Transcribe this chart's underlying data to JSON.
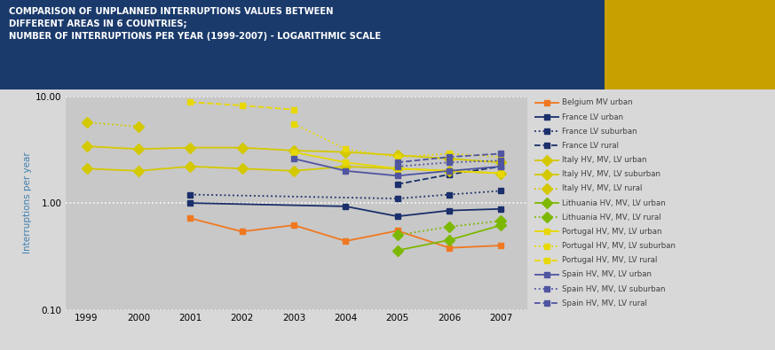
{
  "title_line1": "COMPARISON OF UNPLANNED INTERRUPTIONS VALUES BETWEEN",
  "title_line2": "DIFFERENT AREAS IN 6 COUNTRIES;",
  "title_line3": "NUMBER OF INTERRUPTIONS PER YEAR (1999-2007) - LOGARITHMIC SCALE",
  "ylabel": "Interruptions per year",
  "years": [
    1999,
    2000,
    2001,
    2002,
    2003,
    2004,
    2005,
    2006,
    2007
  ],
  "series": [
    {
      "label": "Belgium MV urban",
      "color": "#f07820",
      "linestyle": "-",
      "marker": "s",
      "markersize": 4,
      "linewidth": 1.3,
      "values": [
        null,
        null,
        0.72,
        0.54,
        0.62,
        0.44,
        0.55,
        0.38,
        0.4
      ]
    },
    {
      "label": "France LV urban",
      "color": "#1a2f6b",
      "linestyle": "-",
      "marker": "s",
      "markersize": 4,
      "linewidth": 1.3,
      "values": [
        null,
        null,
        1.0,
        null,
        null,
        0.93,
        0.75,
        0.85,
        0.88
      ]
    },
    {
      "label": "France LV suburban",
      "color": "#1a2f6b",
      "linestyle": ":",
      "marker": "s",
      "markersize": 4,
      "linewidth": 1.3,
      "values": [
        null,
        null,
        1.2,
        null,
        null,
        null,
        1.1,
        1.2,
        1.3
      ]
    },
    {
      "label": "France LV rural",
      "color": "#1a2f6b",
      "linestyle": "--",
      "marker": "s",
      "markersize": 4,
      "linewidth": 1.3,
      "values": [
        null,
        null,
        null,
        null,
        null,
        null,
        1.5,
        1.85,
        2.2
      ]
    },
    {
      "label": "Italy HV, MV, LV urban",
      "color": "#d4c800",
      "linestyle": "-",
      "marker": "D",
      "markersize": 6,
      "linewidth": 1.3,
      "values": [
        2.1,
        2.0,
        2.2,
        2.1,
        2.0,
        2.2,
        2.1,
        2.0,
        1.9
      ]
    },
    {
      "label": "Italy HV, MV, LV suburban",
      "color": "#d4c800",
      "linestyle": "-",
      "marker": "D",
      "markersize": 6,
      "linewidth": 1.3,
      "values": [
        3.4,
        3.2,
        3.3,
        3.3,
        3.1,
        3.0,
        2.8,
        2.6,
        2.4
      ]
    },
    {
      "label": "Italy HV, MV, LV rural",
      "color": "#d4c800",
      "linestyle": ":",
      "marker": "D",
      "markersize": 6,
      "linewidth": 1.3,
      "values": [
        5.7,
        5.2,
        null,
        null,
        null,
        null,
        null,
        null,
        null
      ]
    },
    {
      "label": "Lithuania HV, MV, LV urban",
      "color": "#7db800",
      "linestyle": "-",
      "marker": "D",
      "markersize": 6,
      "linewidth": 1.3,
      "values": [
        null,
        null,
        null,
        null,
        null,
        null,
        0.36,
        0.45,
        0.62
      ]
    },
    {
      "label": "Lithuania HV, MV, LV rural",
      "color": "#7db800",
      "linestyle": ":",
      "marker": "D",
      "markersize": 6,
      "linewidth": 1.3,
      "values": [
        null,
        null,
        null,
        null,
        null,
        null,
        0.5,
        0.6,
        0.68
      ]
    },
    {
      "label": "Portugal HV, MV, LV urban",
      "color": "#e8d800",
      "linestyle": "-",
      "marker": "s",
      "markersize": 4,
      "linewidth": 1.3,
      "values": [
        null,
        null,
        null,
        null,
        3.0,
        2.4,
        2.1,
        2.0,
        1.9
      ]
    },
    {
      "label": "Portugal HV, MV, LV suburban",
      "color": "#e8d800",
      "linestyle": ":",
      "marker": "s",
      "markersize": 4,
      "linewidth": 1.3,
      "values": [
        null,
        null,
        null,
        null,
        5.5,
        3.2,
        2.7,
        2.9,
        2.7
      ]
    },
    {
      "label": "Portugal HV, MV, LV rural",
      "color": "#e8d800",
      "linestyle": "--",
      "marker": "s",
      "markersize": 4,
      "linewidth": 1.3,
      "values": [
        null,
        null,
        8.8,
        8.2,
        7.5,
        null,
        null,
        null,
        null
      ]
    },
    {
      "label": "Spain HV, MV, LV urban",
      "color": "#5055a0",
      "linestyle": "-",
      "marker": "s",
      "markersize": 4,
      "linewidth": 1.3,
      "values": [
        null,
        null,
        null,
        null,
        2.6,
        2.0,
        1.8,
        2.0,
        2.2
      ]
    },
    {
      "label": "Spain HV, MV, LV suburban",
      "color": "#5055a0",
      "linestyle": ":",
      "marker": "s",
      "markersize": 4,
      "linewidth": 1.3,
      "values": [
        null,
        null,
        null,
        null,
        null,
        null,
        2.2,
        2.4,
        2.5
      ]
    },
    {
      "label": "Spain HV, MV, LV rural",
      "color": "#5055a0",
      "linestyle": "--",
      "marker": "s",
      "markersize": 4,
      "linewidth": 1.3,
      "values": [
        null,
        null,
        null,
        null,
        null,
        null,
        2.4,
        2.7,
        2.9
      ]
    }
  ],
  "ylim": [
    0.1,
    10.0
  ],
  "yticks": [
    0.1,
    1.0,
    10.0
  ],
  "ytick_labels": [
    "0.10",
    "1.00",
    "10.00"
  ],
  "title_bg_color": "#1a3a6b",
  "title_text_color": "#ffffff",
  "plot_bg_color": "#c8c8c8",
  "accent_color": "#c8a000",
  "fig_bg_color": "#d8d8d8"
}
